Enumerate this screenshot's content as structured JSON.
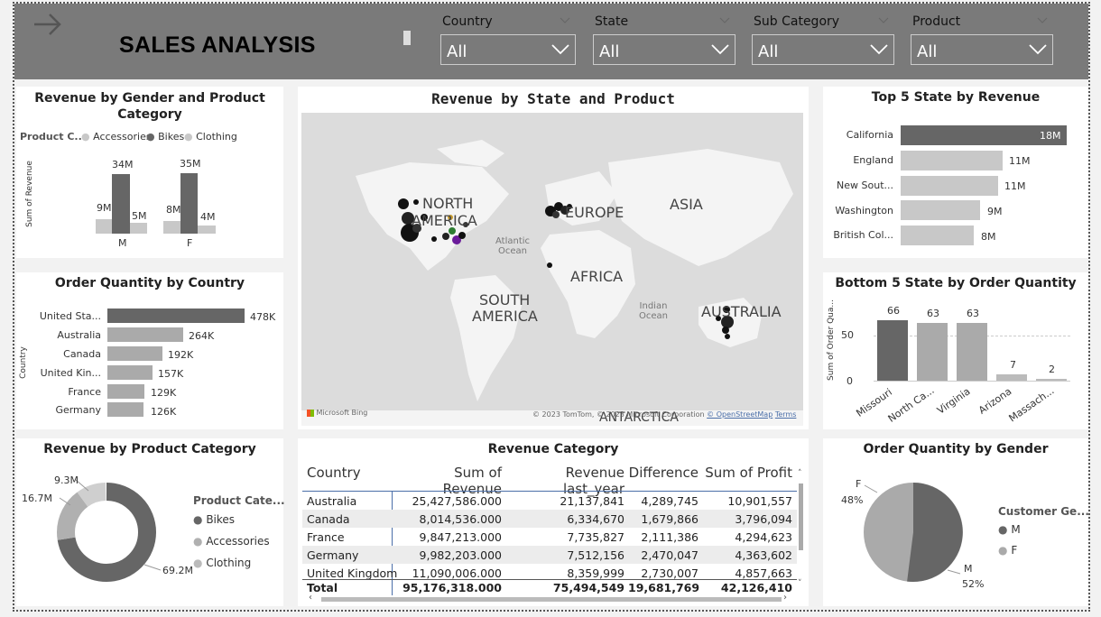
{
  "header": {
    "title": "SALES ANALYSIS",
    "slicers": [
      {
        "label": "Country",
        "value": "All"
      },
      {
        "label": "State",
        "value": "All"
      },
      {
        "label": "Sub Category",
        "value": "All"
      },
      {
        "label": "Product",
        "value": "All"
      }
    ]
  },
  "gender_product": {
    "title": "Revenue by Gender and Product Category",
    "legend_title": "Product C...",
    "legend": [
      "Accessories",
      "Bikes",
      "Clothing"
    ],
    "ylabel": "Sum of Revenue",
    "groups": [
      "M",
      "F"
    ],
    "labels": {
      "m_acc": "9M",
      "m_bikes": "34M",
      "m_cloth": "5M",
      "f_acc": "8M",
      "f_bikes": "35M",
      "f_cloth": "4M"
    }
  },
  "map": {
    "title": "Revenue by State and Product",
    "regions": [
      "NORTH AMERICA",
      "EUROPE",
      "ASIA",
      "AFRICA",
      "SOUTH AMERICA",
      "AUSTRALIA",
      "ANTARCTICA"
    ],
    "oceans": [
      "Atlantic Ocean",
      "Indian Ocean"
    ],
    "bing": "Microsoft Bing",
    "copyright": "© 2023 TomTom, © 2023 Microsoft Corporation",
    "osm": "© OpenStreetMap",
    "terms": "Terms"
  },
  "top_states": {
    "title": "Top 5 State by Revenue",
    "states": [
      "California",
      "England",
      "New Sout...",
      "Washington",
      "British Col..."
    ],
    "labels": [
      "18M",
      "11M",
      "11M",
      "9M",
      "8M"
    ]
  },
  "order_country": {
    "title": "Order Quantity by Country",
    "ylabel": "Country",
    "countries": [
      "United Sta...",
      "Australia",
      "Canada",
      "United Kin...",
      "France",
      "Germany"
    ],
    "labels": [
      "478K",
      "264K",
      "192K",
      "157K",
      "129K",
      "126K"
    ]
  },
  "bottom_states": {
    "title": "Bottom 5 State by Order Quantity",
    "ylabel": "Sum of Order Qua...",
    "states": [
      "Missouri",
      "North Ca...",
      "Virginia",
      "Arizona",
      "Massach..."
    ],
    "labels": [
      "66",
      "63",
      "63",
      "7",
      "2"
    ],
    "ticks": [
      "50",
      "0"
    ]
  },
  "product_category": {
    "title": "Revenue by Product Category",
    "legend_title": "Product Cate...",
    "legend": [
      "Bikes",
      "Accessories",
      "Clothing"
    ],
    "labels": [
      "69.2M",
      "16.7M",
      "9.3M"
    ]
  },
  "revenue_table": {
    "title": "Revenue Category",
    "columns": [
      "Country",
      "Sum of Revenue",
      "Revenue last_year",
      "Difference",
      "Sum of Profit"
    ],
    "rows": [
      [
        "Australia",
        "25,427,586.000",
        "21,137,841",
        "4,289,745",
        "10,901,557"
      ],
      [
        "Canada",
        "8,014,536.000",
        "6,334,670",
        "1,679,866",
        "3,796,094"
      ],
      [
        "France",
        "9,847,213.000",
        "7,735,827",
        "2,111,386",
        "4,294,623"
      ],
      [
        "Germany",
        "9,982,203.000",
        "7,512,156",
        "2,470,047",
        "4,363,602"
      ],
      [
        "United Kingdom",
        "11,090,006.000",
        "8,359,999",
        "2,730,007",
        "4,857,663"
      ]
    ],
    "total": [
      "Total",
      "95,176,318.000",
      "75,494,549",
      "19,681,769",
      "42,126,410"
    ]
  },
  "gender_orders": {
    "title": "Order Quantity by Gender",
    "legend_title": "Customer Ge...",
    "legend": [
      "M",
      "F"
    ],
    "f_label": "F",
    "f_pct": "48%",
    "m_label": "M",
    "m_pct": "52%"
  },
  "chart_data": [
    {
      "type": "bar",
      "title": "Revenue by Gender and Product Category",
      "categories": [
        "M",
        "F"
      ],
      "series": [
        {
          "name": "Accessories",
          "values": [
            9,
            8
          ]
        },
        {
          "name": "Bikes",
          "values": [
            34,
            35
          ]
        },
        {
          "name": "Clothing",
          "values": [
            5,
            4
          ]
        }
      ],
      "ylabel": "Sum of Revenue"
    },
    {
      "type": "bar",
      "title": "Top 5 State by Revenue",
      "categories": [
        "California",
        "England",
        "New Sout...",
        "Washington",
        "British Col..."
      ],
      "values": [
        18,
        11,
        11,
        9,
        8
      ]
    },
    {
      "type": "bar",
      "title": "Order Quantity by Country",
      "categories": [
        "United Sta...",
        "Australia",
        "Canada",
        "United Kin...",
        "France",
        "Germany"
      ],
      "values": [
        478,
        264,
        192,
        157,
        129,
        126
      ],
      "ylabel": "Country"
    },
    {
      "type": "bar",
      "title": "Bottom 5 State by Order Quantity",
      "categories": [
        "Missouri",
        "North Ca...",
        "Virginia",
        "Arizona",
        "Massach..."
      ],
      "values": [
        66,
        63,
        63,
        7,
        2
      ],
      "ylim": [
        0,
        70
      ]
    },
    {
      "type": "pie",
      "title": "Revenue by Product Category",
      "categories": [
        "Bikes",
        "Accessories",
        "Clothing"
      ],
      "values": [
        69.2,
        16.7,
        9.3
      ]
    },
    {
      "type": "pie",
      "title": "Order Quantity by Gender",
      "categories": [
        "M",
        "F"
      ],
      "values": [
        52,
        48
      ]
    }
  ],
  "colors": {
    "dark": "#666666",
    "light": "#c8c8c8",
    "mid": "#aaaaaa",
    "topbar": "#7a7a7a"
  }
}
